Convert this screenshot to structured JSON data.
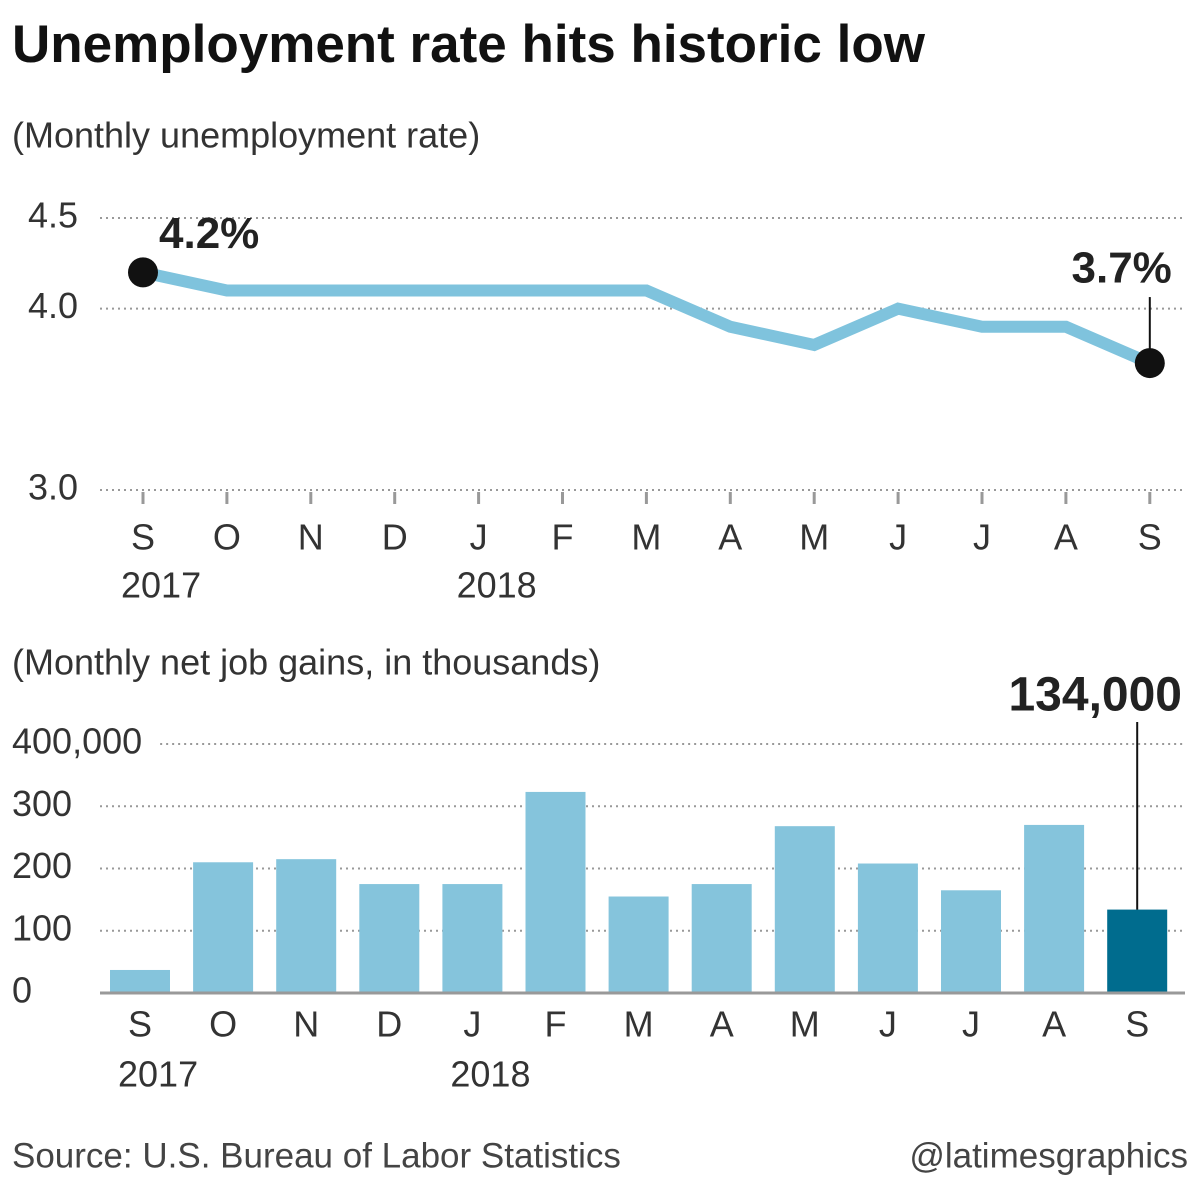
{
  "title": "Unemployment rate hits historic low",
  "source": "Source: U.S. Bureau of Labor Statistics",
  "credit": "@latimesgraphics",
  "chart_data": [
    {
      "type": "line",
      "subtitle": "(Monthly unemployment rate)",
      "categories": [
        "S",
        "O",
        "N",
        "D",
        "J",
        "F",
        "M",
        "A",
        "M",
        "J",
        "J",
        "A",
        "S"
      ],
      "years": [
        "2017",
        null,
        null,
        null,
        "2018",
        null,
        null,
        null,
        null,
        null,
        null,
        null,
        null
      ],
      "series": [
        {
          "name": "Unemployment rate",
          "color": "#7fc3dd",
          "values": [
            4.2,
            4.1,
            4.1,
            4.1,
            4.1,
            4.1,
            4.1,
            3.9,
            3.8,
            4.0,
            3.9,
            3.9,
            3.7
          ],
          "value_labels": [
            "4.2%",
            null,
            null,
            null,
            null,
            null,
            null,
            null,
            null,
            null,
            null,
            null,
            "3.7%"
          ]
        }
      ],
      "ylim": [
        3.0,
        4.5
      ],
      "yticks": [
        {
          "value": 3.0,
          "label": "3.0"
        },
        {
          "value": 4.0,
          "label": "4.0"
        },
        4.5
      ],
      "grid": true
    },
    {
      "type": "bar",
      "subtitle": "(Monthly net job gains, in thousands)",
      "categories": [
        "S",
        "O",
        "N",
        "D",
        "J",
        "F",
        "M",
        "A",
        "M",
        "J",
        "J",
        "A",
        "S"
      ],
      "years": [
        "2017",
        null,
        null,
        null,
        "2018",
        null,
        null,
        null,
        null,
        null,
        null,
        null,
        null
      ],
      "values": [
        37,
        210,
        215,
        175,
        175,
        323,
        155,
        175,
        268,
        208,
        165,
        270,
        134
      ],
      "value_labels": [
        null,
        null,
        null,
        null,
        null,
        null,
        null,
        null,
        null,
        null,
        null,
        null,
        "134,000"
      ],
      "colors": [
        "#85c4dc",
        "#85c4dc",
        "#85c4dc",
        "#85c4dc",
        "#85c4dc",
        "#85c4dc",
        "#85c4dc",
        "#85c4dc",
        "#85c4dc",
        "#85c4dc",
        "#85c4dc",
        "#85c4dc",
        "#006c8e"
      ],
      "ylim": [
        0,
        400
      ],
      "yticks": [
        0,
        100,
        200,
        300,
        {
          "value": 400,
          "label": "400,000"
        }
      ],
      "grid": true
    }
  ]
}
